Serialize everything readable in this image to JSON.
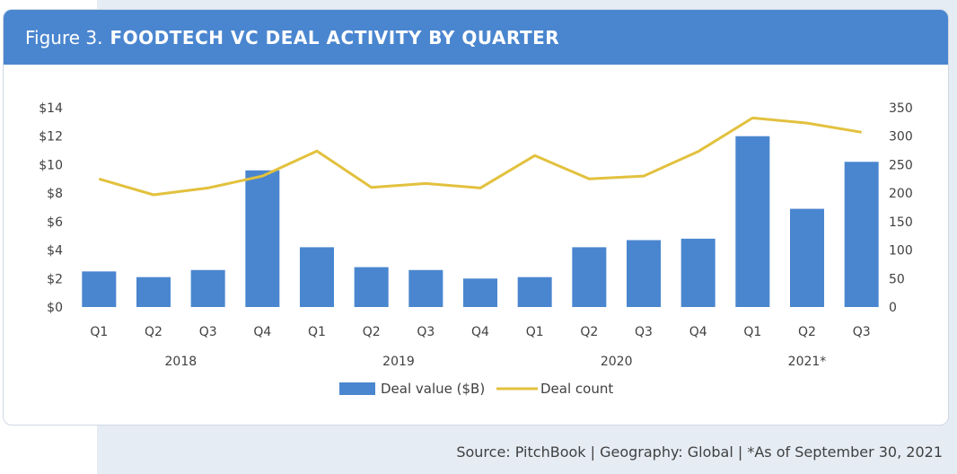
{
  "header": {
    "figure_label": "Figure 3.",
    "title": "FOODTECH VC DEAL ACTIVITY BY QUARTER"
  },
  "source_line": "Source: PitchBook  |  Geography: Global  |  *As of September 30, 2021",
  "colors": {
    "header_bg": "#4a86cf",
    "bar": "#4a86cf",
    "line": "#e2c13e",
    "side_band": "#e6ecf4"
  },
  "chart_data": {
    "type": "bar",
    "categories": [
      "Q1",
      "Q2",
      "Q3",
      "Q4",
      "Q1",
      "Q2",
      "Q3",
      "Q4",
      "Q1",
      "Q2",
      "Q3",
      "Q4",
      "Q1",
      "Q2",
      "Q3"
    ],
    "year_groups": [
      {
        "label": "2018",
        "quarters": 4
      },
      {
        "label": "2019",
        "quarters": 4
      },
      {
        "label": "2020",
        "quarters": 4
      },
      {
        "label": "2021*",
        "quarters": 3
      }
    ],
    "series": [
      {
        "name": "Deal value ($B)",
        "kind": "bar",
        "axis": "left",
        "values": [
          2.5,
          2.1,
          2.6,
          9.6,
          4.2,
          2.8,
          2.6,
          2.0,
          2.1,
          4.2,
          4.7,
          4.8,
          12.0,
          6.9,
          10.2
        ]
      },
      {
        "name": "Deal count",
        "kind": "line",
        "axis": "right",
        "values": [
          225,
          197,
          209,
          230,
          274,
          210,
          217,
          209,
          266,
          225,
          230,
          273,
          332,
          323,
          307
        ]
      }
    ],
    "y_left": {
      "ticks": [
        "$0",
        "$2",
        "$4",
        "$6",
        "$8",
        "$10",
        "$12",
        "$14"
      ],
      "ylim": [
        0,
        14
      ]
    },
    "y_right": {
      "ticks": [
        "0",
        "50",
        "100",
        "150",
        "200",
        "250",
        "300",
        "350"
      ],
      "ylim": [
        0,
        350
      ]
    },
    "legend_position": "bottom-center",
    "grid": false
  }
}
